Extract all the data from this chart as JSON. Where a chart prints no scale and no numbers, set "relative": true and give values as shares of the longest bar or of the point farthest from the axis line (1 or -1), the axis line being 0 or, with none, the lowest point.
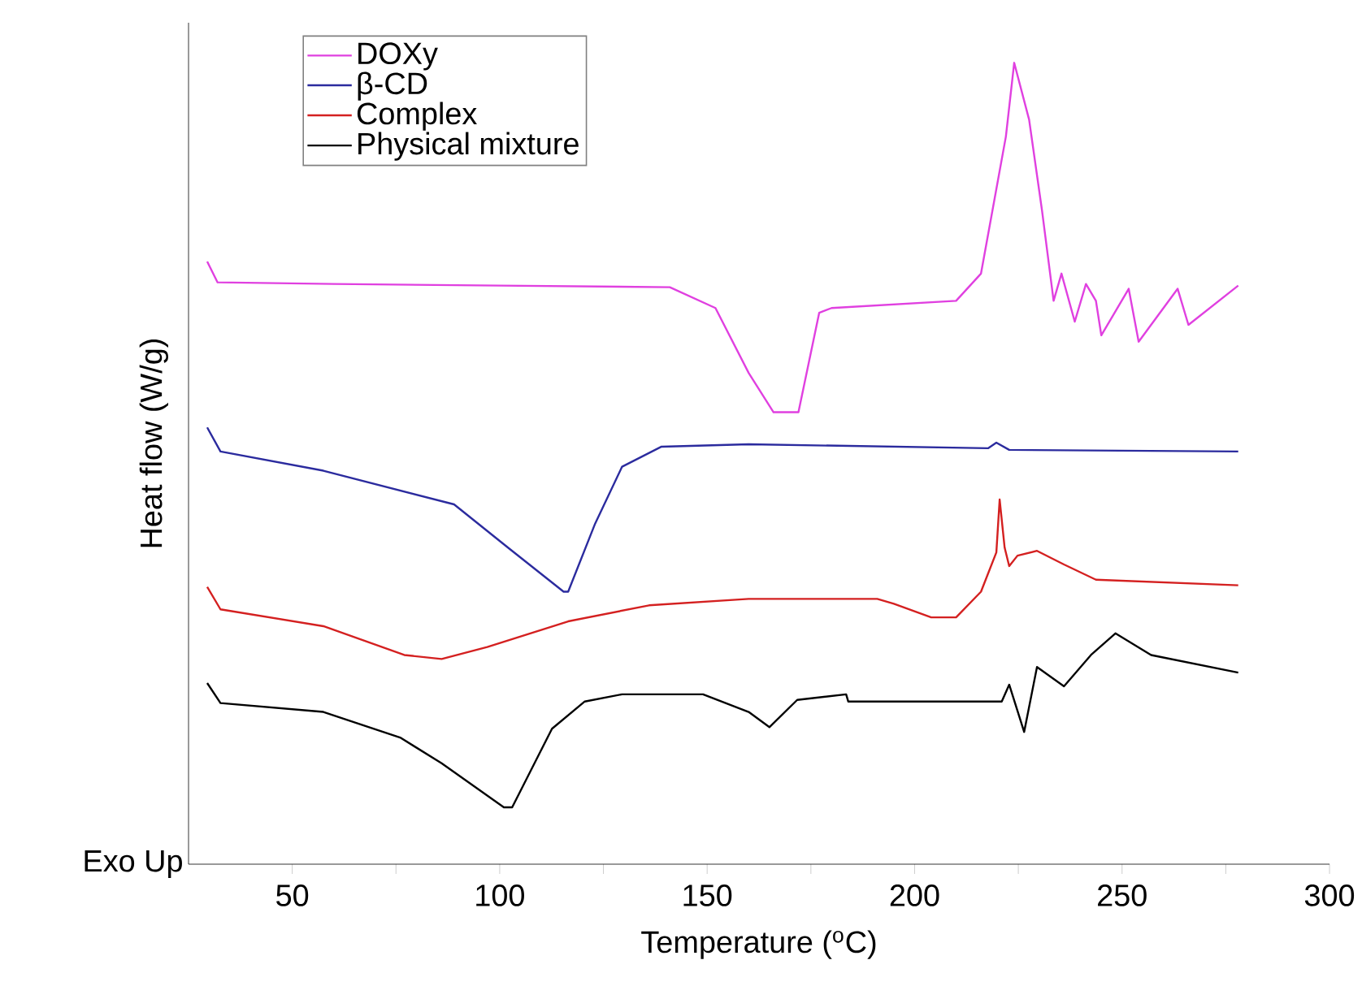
{
  "chart_data": {
    "type": "line",
    "relative": true,
    "xlabel": "Temperature ($^{o}$C)",
    "ylabel": "Heat flow (W/g)",
    "annotations": [
      "Exo Up"
    ],
    "xlim": [
      25,
      300
    ],
    "xticks": [
      50,
      {
        "value": 75,
        "label": null
      },
      100,
      {
        "value": 125,
        "label": null
      },
      150,
      {
        "value": 175,
        "label": null
      },
      200,
      {
        "value": 225,
        "label": null
      },
      250,
      {
        "value": 275,
        "label": null
      },
      300
    ],
    "legend": "top left",
    "grid": false,
    "marker": "none",
    "line_style": "solid",
    "series": [
      {
        "name": "DOXy",
        "color": "#e040e0",
        "x": [
          29.5,
          32,
          60,
          100,
          141,
          152,
          160,
          166,
          172,
          177,
          180,
          210,
          216,
          222,
          224,
          227.6,
          230.7,
          233.5,
          235.4,
          238.6,
          241.3,
          243.7,
          245,
          251.6,
          254,
          263.4,
          266,
          278
        ],
        "values": [
          0.752,
          0.726,
          0.724,
          0.722,
          0.72,
          0.694,
          0.613,
          0.564,
          0.564,
          0.688,
          0.694,
          0.703,
          0.737,
          0.908,
          1,
          0.929,
          0.816,
          0.703,
          0.737,
          0.677,
          0.724,
          0.703,
          0.66,
          0.718,
          0.652,
          0.718,
          0.673,
          0.722
        ]
      },
      {
        "name": "β-CD",
        "color": "#2b2b9e",
        "x": [
          29.5,
          32.7,
          57.5,
          89,
          102,
          115.4,
          116.5,
          123,
          129.5,
          139,
          160,
          217.7,
          219.7,
          222.8,
          278
        ],
        "values": [
          0.545,
          0.515,
          0.491,
          0.449,
          0.395,
          0.34,
          0.34,
          0.425,
          0.496,
          0.521,
          0.524,
          0.519,
          0.526,
          0.517,
          0.515
        ]
      },
      {
        "name": "Complex",
        "color": "#d42020",
        "x": [
          29.5,
          32.7,
          57.5,
          77,
          86,
          97,
          116.5,
          136,
          160,
          191,
          195,
          204,
          210,
          216,
          219.7,
          220.5,
          221.7,
          222.8,
          224.8,
          229.5,
          236,
          243.7,
          278
        ],
        "values": [
          0.346,
          0.318,
          0.297,
          0.261,
          0.256,
          0.271,
          0.303,
          0.323,
          0.331,
          0.331,
          0.325,
          0.308,
          0.308,
          0.34,
          0.389,
          0.455,
          0.395,
          0.372,
          0.385,
          0.391,
          0.374,
          0.355,
          0.348
        ]
      },
      {
        "name": "Physical mixture",
        "color": "#000000",
        "x": [
          29.5,
          32.7,
          57.5,
          76,
          86,
          101,
          103,
          112.6,
          120.5,
          129.5,
          149,
          160,
          165,
          171.7,
          183.5,
          184,
          221,
          222.8,
          226.4,
          229.5,
          236,
          242.5,
          248.4,
          257,
          278
        ],
        "values": [
          0.226,
          0.201,
          0.19,
          0.158,
          0.126,
          0.071,
          0.071,
          0.169,
          0.203,
          0.212,
          0.212,
          0.19,
          0.171,
          0.205,
          0.212,
          0.203,
          0.203,
          0.224,
          0.165,
          0.246,
          0.222,
          0.261,
          0.288,
          0.261,
          0.239
        ]
      }
    ]
  }
}
